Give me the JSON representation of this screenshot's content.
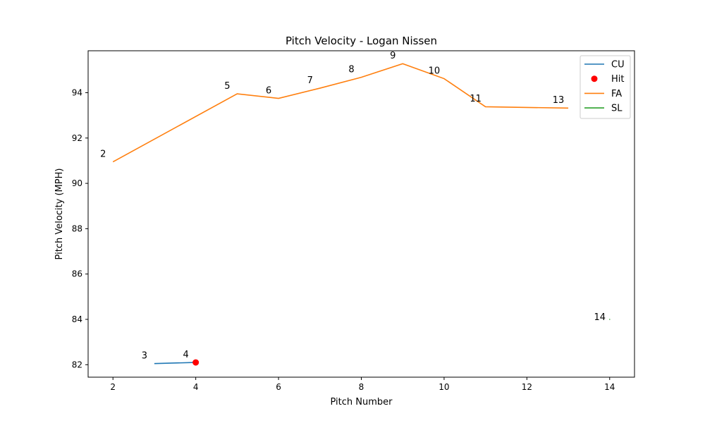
{
  "chart_data": {
    "type": "line",
    "title": "Pitch Velocity - Logan Nissen",
    "xlabel": "Pitch Number",
    "ylabel": "Pitch Velocity (MPH)",
    "xlim": [
      1.4,
      14.6
    ],
    "ylim": [
      81.45,
      95.85
    ],
    "xticks": [
      2,
      4,
      6,
      8,
      10,
      12,
      14
    ],
    "yticks": [
      82,
      84,
      86,
      88,
      90,
      92,
      94
    ],
    "grid": false,
    "legend_position": "top-right",
    "series": [
      {
        "name": "CU",
        "kind": "line",
        "color": "#1f77b4",
        "x": [
          3,
          4
        ],
        "y": [
          82.05,
          82.1
        ]
      },
      {
        "name": "Hit",
        "kind": "scatter",
        "color": "#ff0000",
        "x": [
          4
        ],
        "y": [
          82.1
        ]
      },
      {
        "name": "FA",
        "kind": "line",
        "color": "#ff7f0e",
        "x": [
          2,
          5,
          6,
          7,
          8,
          9,
          10,
          11,
          13
        ],
        "y": [
          90.95,
          93.95,
          93.75,
          94.2,
          94.68,
          95.28,
          94.62,
          93.38,
          93.32
        ]
      },
      {
        "name": "SL",
        "kind": "line",
        "color": "#2ca02c",
        "x": [
          14
        ],
        "y": [
          84.0
        ]
      }
    ],
    "annotations": [
      {
        "text": "2",
        "x": 2,
        "y": 91.3
      },
      {
        "text": "3",
        "x": 3,
        "y": 82.4
      },
      {
        "text": "4",
        "x": 4,
        "y": 82.45
      },
      {
        "text": "5",
        "x": 5,
        "y": 94.3
      },
      {
        "text": "6",
        "x": 6,
        "y": 94.1
      },
      {
        "text": "7",
        "x": 7,
        "y": 94.55
      },
      {
        "text": "8",
        "x": 8,
        "y": 95.03
      },
      {
        "text": "9",
        "x": 9,
        "y": 95.63
      },
      {
        "text": "10",
        "x": 10,
        "y": 94.97
      },
      {
        "text": "11",
        "x": 11,
        "y": 93.73
      },
      {
        "text": "13",
        "x": 13,
        "y": 93.67
      },
      {
        "text": "14",
        "x": 14,
        "y": 84.1
      }
    ]
  }
}
